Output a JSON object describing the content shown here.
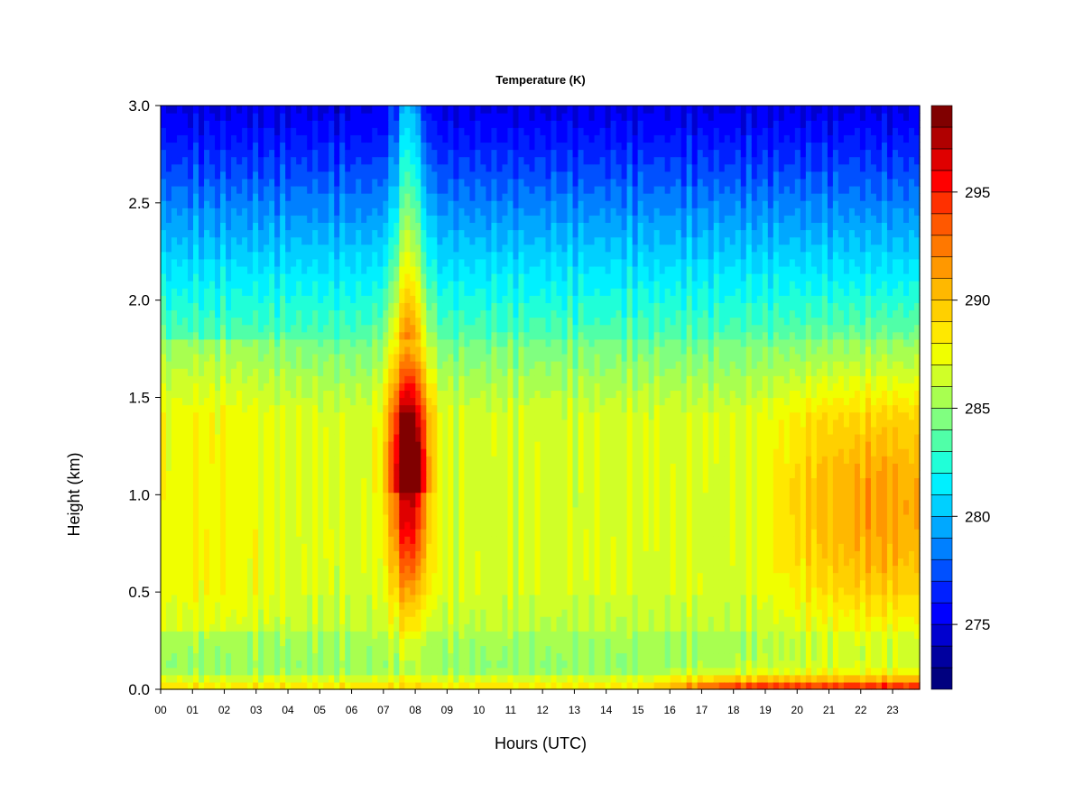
{
  "chart_data": {
    "type": "heatmap",
    "title": "Temperature (K)",
    "xlabel": "Hours (UTC)",
    "ylabel": "Height (km)",
    "x_ticks": [
      "00",
      "01",
      "02",
      "03",
      "04",
      "05",
      "06",
      "07",
      "08",
      "09",
      "10",
      "11",
      "12",
      "13",
      "14",
      "15",
      "16",
      "17",
      "18",
      "19",
      "20",
      "21",
      "22",
      "23"
    ],
    "xlim": [
      0,
      23.85
    ],
    "y_ticks": [
      "0.0",
      "0.5",
      "1.0",
      "1.5",
      "2.0",
      "2.5",
      "3.0"
    ],
    "ylim": [
      0,
      3.0
    ],
    "colorbar": {
      "ticks": [
        "275",
        "280",
        "285",
        "290",
        "295"
      ],
      "range": [
        272,
        299
      ],
      "levels": 27,
      "colors": [
        "#00007f",
        "#00009f",
        "#0000cf",
        "#0000ff",
        "#0020ff",
        "#0050ff",
        "#0080ff",
        "#00a8ff",
        "#00d0ff",
        "#00f0ff",
        "#20ffd8",
        "#50ffa8",
        "#80ff80",
        "#a8ff50",
        "#d0ff28",
        "#f0ff00",
        "#ffe800",
        "#ffd000",
        "#ffb800",
        "#ff9800",
        "#ff7800",
        "#ff5800",
        "#ff3000",
        "#ff0000",
        "#df0000",
        "#b00000",
        "#800000"
      ]
    },
    "features": [
      {
        "name": "warm plume",
        "hour_center": 7.8,
        "height_range_km": [
          0.45,
          2.2
        ],
        "peak_K": 297
      },
      {
        "name": "warm surface layer",
        "hours": [
          15,
          23.85
        ],
        "height_range_km": [
          0.0,
          0.15
        ],
        "peak_K": 296
      },
      {
        "name": "warm region",
        "hours": [
          19,
          23.85
        ],
        "height_range_km": [
          0.4,
          1.6
        ],
        "peak_K": 290
      },
      {
        "name": "cold upper layer",
        "hours": [
          0,
          23.85
        ],
        "height_range_km": [
          2.2,
          3.0
        ],
        "min_K": 273
      }
    ],
    "grid": false,
    "legend": "colorbar-right"
  }
}
